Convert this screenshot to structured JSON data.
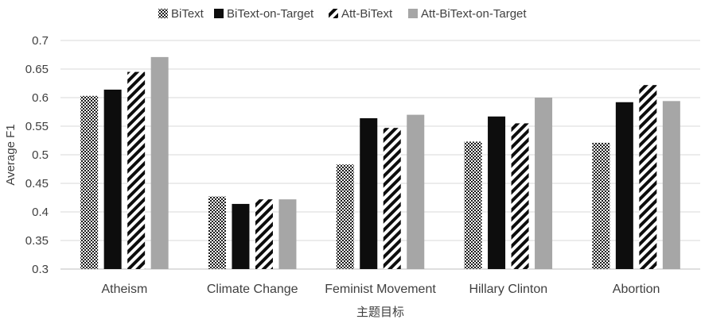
{
  "chart_data": {
    "type": "bar",
    "categories": [
      "Atheism",
      "Climate Change",
      "Feminist Movement",
      "Hillary Clinton",
      "Abortion"
    ],
    "series": [
      {
        "name": "BiText",
        "values": [
          0.603,
          0.427,
          0.483,
          0.523,
          0.521
        ],
        "pattern": "checker"
      },
      {
        "name": "BiText-on-Target",
        "values": [
          0.614,
          0.414,
          0.564,
          0.567,
          0.592
        ],
        "pattern": "solid-black"
      },
      {
        "name": "Att-BiText",
        "values": [
          0.645,
          0.422,
          0.547,
          0.555,
          0.622
        ],
        "pattern": "diagonal"
      },
      {
        "name": "Att-BiText-on-Target",
        "values": [
          0.671,
          0.422,
          0.57,
          0.6,
          0.594
        ],
        "pattern": "solid-gray"
      }
    ],
    "title": "",
    "xlabel": "主题目标",
    "ylabel": "Average F1",
    "ylim": [
      0.3,
      0.7
    ],
    "yticks": [
      "0.3",
      "0.35",
      "0.4",
      "0.45",
      "0.5",
      "0.55",
      "0.6",
      "0.65",
      "0.7"
    ],
    "grid": true,
    "legend_position": "top",
    "colors": {
      "black": "#0d0d0d",
      "gray": "#a6a6a6",
      "grid": "#d9d9d9",
      "text": "#404040"
    }
  }
}
